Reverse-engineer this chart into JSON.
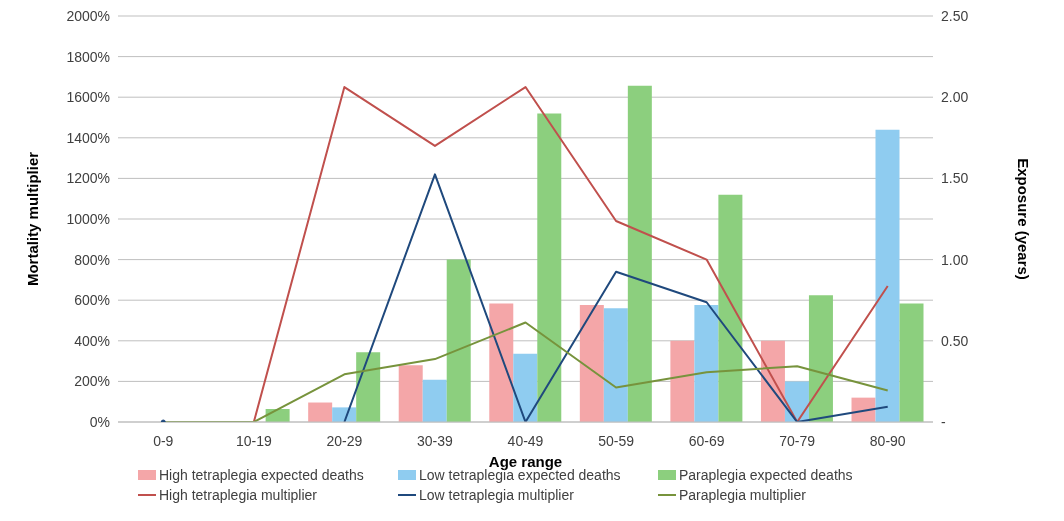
{
  "chart_data": {
    "type": "bar",
    "xlabel": "Age range",
    "ylabel": "Mortality multiplier",
    "y2label": "Exposure (years)",
    "categories": [
      "0-9",
      "10-19",
      "20-29",
      "30-39",
      "40-49",
      "50-59",
      "60-69",
      "70-79",
      "80-90"
    ],
    "series": [
      {
        "name": "High tetraplegia expected deaths",
        "axis": "y2",
        "color": "#f4a6a8",
        "values": [
          0,
          0,
          0.12,
          0.35,
          0.73,
          0.72,
          0.5,
          0.5,
          0.15
        ]
      },
      {
        "name": "Low tetraplegia expected deaths",
        "axis": "y2",
        "color": "#8fccf0",
        "values": [
          0,
          0,
          0.09,
          0.26,
          0.42,
          0.7,
          0.72,
          0.25,
          1.8
        ]
      },
      {
        "name": "Paraplegia expected deaths",
        "axis": "y2",
        "color": "#8ccf7e",
        "values": [
          0,
          0.08,
          0.43,
          1.0,
          1.9,
          2.07,
          1.4,
          0.78,
          0.73
        ]
      },
      {
        "name": "High tetraplegia multiplier",
        "type": "line",
        "color": "#c0504d",
        "values": [
          0,
          0,
          1650,
          1360,
          1650,
          990,
          800,
          0,
          670
        ]
      },
      {
        "name": "Low tetraplegia multiplier",
        "type": "line",
        "color": "#1f497d",
        "values": [
          0,
          null,
          0,
          1220,
          0,
          740,
          590,
          0,
          75
        ]
      },
      {
        "name": "Paraplegia multiplier",
        "type": "line",
        "color": "#77933c",
        "values": [
          0,
          0,
          235,
          310,
          490,
          170,
          245,
          275,
          155
        ]
      }
    ],
    "ylim": [
      0,
      2000
    ],
    "yticks": [
      {
        "value": 0,
        "label": "0%"
      },
      {
        "value": 200,
        "label": "200%"
      },
      {
        "value": 400,
        "label": "400%"
      },
      {
        "value": 600,
        "label": "600%"
      },
      {
        "value": 800,
        "label": "800%"
      },
      {
        "value": 1000,
        "label": "1000%"
      },
      {
        "value": 1200,
        "label": "1200%"
      },
      {
        "value": 1400,
        "label": "1400%"
      },
      {
        "value": 1600,
        "label": "1600%"
      },
      {
        "value": 1800,
        "label": "1800%"
      },
      {
        "value": 2000,
        "label": "2000%"
      }
    ],
    "y2lim": [
      0,
      2.5
    ],
    "y2ticks": [
      {
        "value": 0,
        "label": "-"
      },
      {
        "value": 0.5,
        "label": "0.50"
      },
      {
        "value": 1,
        "label": "1.00"
      },
      {
        "value": 1.5,
        "label": "1.50"
      },
      {
        "value": 2,
        "label": "2.00"
      },
      {
        "value": 2.5,
        "label": "2.50"
      }
    ],
    "grid": "y",
    "legend": "bottom",
    "marker": "none",
    "line_style": "solid"
  }
}
